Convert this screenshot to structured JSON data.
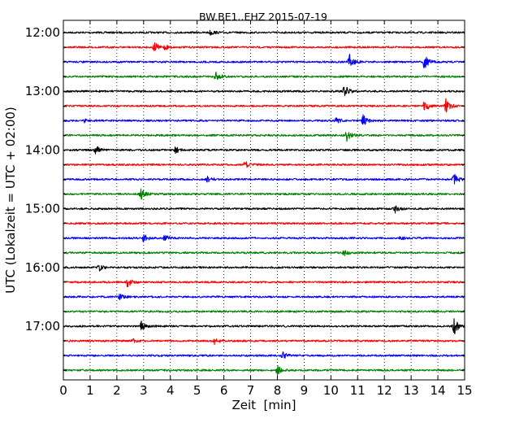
{
  "chart_data": {
    "type": "line",
    "title": "BW.BE1..EHZ 2015-07-19",
    "xlabel": "Zeit  [min]",
    "ylabel": "UTC (Lokalzeit = UTC + 02:00)",
    "xlim": [
      0,
      15
    ],
    "x_ticks": [
      "0",
      "1",
      "2",
      "3",
      "4",
      "5",
      "6",
      "7",
      "8",
      "9",
      "10",
      "11",
      "12",
      "13",
      "14",
      "15"
    ],
    "y_tick_labels": [
      "12:00",
      "13:00",
      "14:00",
      "15:00",
      "16:00",
      "17:00"
    ],
    "grid": "vertical dotted",
    "colors": [
      "#000000",
      "#ff0000",
      "#0000ff",
      "#008000"
    ],
    "traces": [
      {
        "time": "12:00",
        "color": "#000000",
        "events": [
          {
            "t": 5.5,
            "amp": 3
          }
        ]
      },
      {
        "time": "12:15",
        "color": "#ff0000",
        "events": [
          {
            "t": 3.4,
            "amp": 6
          },
          {
            "t": 3.8,
            "amp": 3
          }
        ]
      },
      {
        "time": "12:30",
        "color": "#0000ff",
        "events": [
          {
            "t": 10.7,
            "amp": 9
          },
          {
            "t": 13.5,
            "amp": 9
          }
        ]
      },
      {
        "time": "12:45",
        "color": "#008000",
        "events": [
          {
            "t": 5.7,
            "amp": 6
          }
        ]
      },
      {
        "time": "13:00",
        "color": "#000000",
        "events": [
          {
            "t": 10.5,
            "amp": 8
          }
        ]
      },
      {
        "time": "13:15",
        "color": "#ff0000",
        "events": [
          {
            "t": 13.5,
            "amp": 8
          },
          {
            "t": 14.3,
            "amp": 10
          }
        ]
      },
      {
        "time": "13:30",
        "color": "#0000ff",
        "events": [
          {
            "t": 0.8,
            "amp": 2
          },
          {
            "t": 10.2,
            "amp": 4
          },
          {
            "t": 11.2,
            "amp": 7
          }
        ]
      },
      {
        "time": "13:45",
        "color": "#008000",
        "events": [
          {
            "t": 10.6,
            "amp": 7
          }
        ]
      },
      {
        "time": "14:00",
        "color": "#000000",
        "events": [
          {
            "t": 1.2,
            "amp": 6
          },
          {
            "t": 4.2,
            "amp": 4
          }
        ]
      },
      {
        "time": "14:15",
        "color": "#ff0000",
        "events": [
          {
            "t": 6.8,
            "amp": 5
          }
        ]
      },
      {
        "time": "14:30",
        "color": "#0000ff",
        "events": [
          {
            "t": 5.4,
            "amp": 4
          },
          {
            "t": 14.6,
            "amp": 7
          }
        ]
      },
      {
        "time": "14:45",
        "color": "#008000",
        "events": [
          {
            "t": 2.9,
            "amp": 7
          }
        ]
      },
      {
        "time": "15:00",
        "color": "#000000",
        "events": [
          {
            "t": 12.4,
            "amp": 5
          }
        ]
      },
      {
        "time": "15:15",
        "color": "#ff0000",
        "events": []
      },
      {
        "time": "15:30",
        "color": "#0000ff",
        "events": [
          {
            "t": 3.0,
            "amp": 5
          },
          {
            "t": 3.8,
            "amp": 4
          },
          {
            "t": 12.6,
            "amp": 2
          }
        ]
      },
      {
        "time": "15:45",
        "color": "#008000",
        "events": [
          {
            "t": 10.5,
            "amp": 3
          }
        ]
      },
      {
        "time": "16:00",
        "color": "#000000",
        "events": [
          {
            "t": 1.3,
            "amp": 5
          }
        ]
      },
      {
        "time": "16:15",
        "color": "#ff0000",
        "events": [
          {
            "t": 2.4,
            "amp": 7
          }
        ]
      },
      {
        "time": "16:30",
        "color": "#0000ff",
        "events": [
          {
            "t": 2.1,
            "amp": 3
          }
        ]
      },
      {
        "time": "16:45",
        "color": "#008000",
        "events": []
      },
      {
        "time": "17:00",
        "color": "#000000",
        "events": [
          {
            "t": 2.9,
            "amp": 6
          },
          {
            "t": 14.6,
            "amp": 11
          }
        ]
      },
      {
        "time": "17:15",
        "color": "#ff0000",
        "events": [
          {
            "t": 2.6,
            "amp": 3
          },
          {
            "t": 5.6,
            "amp": 6
          }
        ]
      },
      {
        "time": "17:30",
        "color": "#0000ff",
        "events": [
          {
            "t": 8.2,
            "amp": 4
          }
        ]
      },
      {
        "time": "17:45",
        "color": "#008000",
        "events": [
          {
            "t": 8.0,
            "amp": 7
          }
        ]
      }
    ]
  }
}
